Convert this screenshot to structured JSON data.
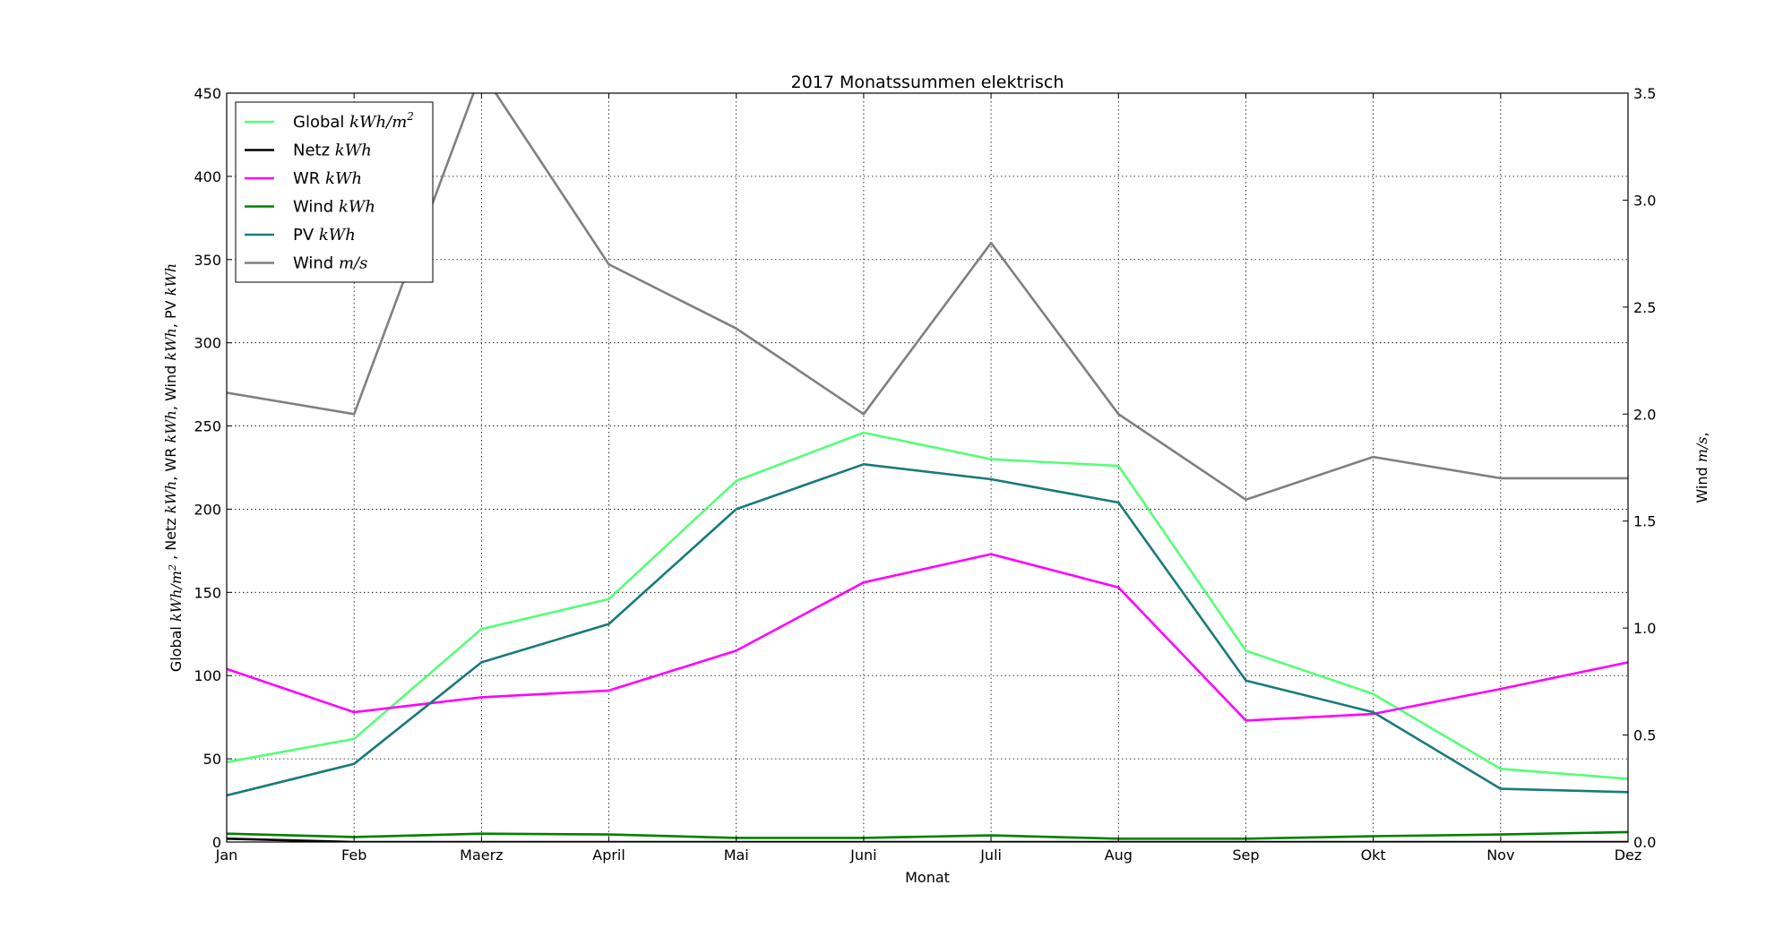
{
  "chart_data": {
    "type": "line",
    "title": "2017 Monatssummen elektrisch",
    "xlabel": "Monat",
    "ylabel": {
      "parts": [
        {
          "t": "Global ",
          "m": false
        },
        {
          "t": "kWh/m",
          "m": true
        },
        {
          "t": "2",
          "m": true,
          "sup": true
        },
        {
          "t": " , Netz ",
          "m": false
        },
        {
          "t": "kWh",
          "m": true
        },
        {
          "t": ", WR ",
          "m": false
        },
        {
          "t": "kWh",
          "m": true
        },
        {
          "t": ", Wind ",
          "m": false
        },
        {
          "t": "kWh",
          "m": true
        },
        {
          "t": ", PV ",
          "m": false
        },
        {
          "t": "kWh",
          "m": true
        }
      ]
    },
    "y2label": {
      "parts": [
        {
          "t": "Wind ",
          "m": false
        },
        {
          "t": "m/s",
          "m": true
        },
        {
          "t": ",",
          "m": false
        }
      ]
    },
    "categories": [
      "Jan",
      "Feb",
      "Maerz",
      "April",
      "Mai",
      "Juni",
      "Juli",
      "Aug",
      "Sep",
      "Okt",
      "Nov",
      "Dez"
    ],
    "ylim": [
      0,
      450
    ],
    "yticks": [
      0,
      50,
      100,
      150,
      200,
      250,
      300,
      350,
      400,
      450
    ],
    "y2lim": [
      0,
      3.5
    ],
    "y2ticks": [
      "0.0",
      "0.5",
      "1.0",
      "1.5",
      "2.0",
      "2.5",
      "3.0",
      "3.5"
    ],
    "grid": true,
    "legend_position": "top-left",
    "series": [
      {
        "key": "global",
        "name": "Global",
        "unit": "kWh/m",
        "unit_sup": "2",
        "color": "#55ff77",
        "axis": "left",
        "values": [
          48,
          62,
          128,
          146,
          217,
          246,
          230,
          226,
          115,
          89,
          44,
          38
        ]
      },
      {
        "key": "netz",
        "name": "Netz",
        "unit": "kWh",
        "color": "#000000",
        "axis": "left",
        "values": [
          2,
          0,
          0,
          0,
          0,
          0,
          0,
          0,
          0,
          0,
          0,
          0
        ]
      },
      {
        "key": "wr",
        "name": "WR",
        "unit": "kWh",
        "color": "#ff00ff",
        "axis": "left",
        "values": [
          104,
          78,
          87,
          91,
          115,
          156,
          173,
          153,
          73,
          77,
          92,
          108
        ]
      },
      {
        "key": "windkwh",
        "name": "Wind",
        "unit": "kWh",
        "color": "#008000",
        "axis": "left",
        "values": [
          5,
          3,
          5,
          4.5,
          2.5,
          2.5,
          4,
          2,
          2,
          3.5,
          4.5,
          6
        ]
      },
      {
        "key": "pv",
        "name": "PV",
        "unit": "kWh",
        "color": "#1a7a7a",
        "axis": "left",
        "values": [
          28,
          47,
          108,
          131,
          200,
          227,
          218,
          204,
          97,
          78,
          32,
          30
        ]
      },
      {
        "key": "windms",
        "name": "Wind",
        "unit": "m/s",
        "color": "#808080",
        "axis": "right",
        "values": [
          2.1,
          2.0,
          3.6,
          2.7,
          2.4,
          2.0,
          2.8,
          2.0,
          1.6,
          1.8,
          1.7,
          1.7
        ]
      }
    ]
  }
}
